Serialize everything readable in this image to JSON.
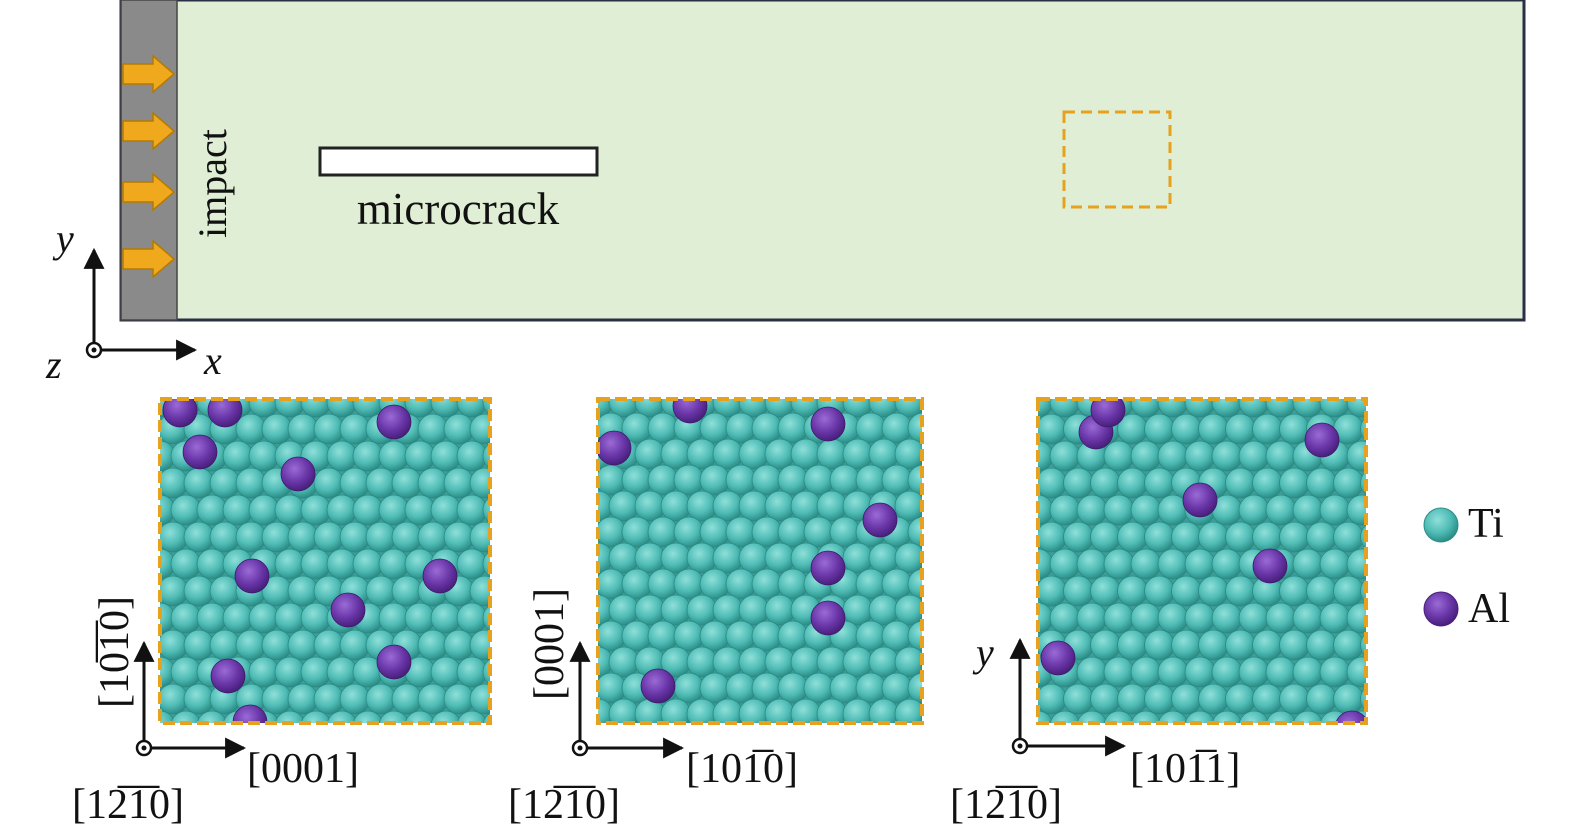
{
  "top": {
    "impact_label": "impact",
    "microcrack_label": "microcrack",
    "axis_y": "y",
    "axis_x": "x",
    "axis_z": "z"
  },
  "panels": [
    {
      "vertical_label": "[10̅1̅0]",
      "horizontal_label": "[0001]",
      "normal_label": "[12̅1̅0]"
    },
    {
      "vertical_label": "[0001]",
      "horizontal_label": "[101̅0]",
      "normal_label": "[12̅1̅0]"
    },
    {
      "vertical_label": "y",
      "horizontal_label": "[101̅1]",
      "normal_label": "[12̅1̅0]"
    }
  ],
  "legend": [
    {
      "label": "Ti",
      "color": "#4fbcb5"
    },
    {
      "label": "Al",
      "color": "#6a36a8"
    }
  ],
  "colors": {
    "sample": "#dfeed5",
    "wall": "#8a8a8a",
    "arrow": "#f0a81c",
    "dashed_box": "#e6a21e",
    "ti": "#4fbcb5",
    "al": "#6a36a8"
  }
}
